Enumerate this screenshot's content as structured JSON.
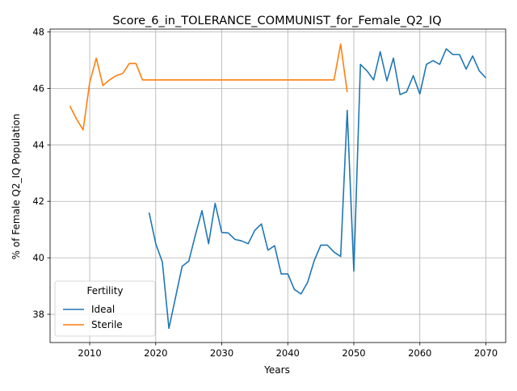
{
  "chart_data": {
    "type": "line",
    "title": "Score_6_in_TOLERANCE_COMMUNIST_for_Female_Q2_IQ",
    "xlabel": "Years",
    "ylabel": "% of Female Q2_IQ Population",
    "xlim": [
      2004,
      2073
    ],
    "ylim": [
      37,
      48.1
    ],
    "xticks": [
      2010,
      2020,
      2030,
      2040,
      2050,
      2060,
      2070
    ],
    "yticks": [
      38,
      40,
      42,
      44,
      46,
      48
    ],
    "grid": true,
    "legend": {
      "title": "Fertility",
      "placement": "lower-left"
    },
    "series": [
      {
        "name": "Ideal",
        "color": "#1f77b4",
        "x": [
          2019,
          2020,
          2021,
          2022,
          2023,
          2024,
          2025,
          2026,
          2027,
          2028,
          2029,
          2030,
          2031,
          2032,
          2033,
          2034,
          2035,
          2036,
          2037,
          2038,
          2039,
          2040,
          2041,
          2042,
          2043,
          2044,
          2045,
          2046,
          2047,
          2048,
          2049,
          2050,
          2051,
          2052,
          2053,
          2054,
          2055,
          2056,
          2057,
          2058,
          2059,
          2060,
          2061,
          2062,
          2063,
          2064,
          2065,
          2066,
          2067,
          2068,
          2069,
          2070
        ],
        "values": [
          41.6,
          40.5,
          39.85,
          37.5,
          38.6,
          39.7,
          39.88,
          40.8,
          41.67,
          40.5,
          41.93,
          40.9,
          40.88,
          40.65,
          40.6,
          40.5,
          40.97,
          41.2,
          40.27,
          40.43,
          39.43,
          39.43,
          38.88,
          38.72,
          39.13,
          39.9,
          40.45,
          40.45,
          40.2,
          40.05,
          45.22,
          39.53,
          46.85,
          46.62,
          46.3,
          47.3,
          46.27,
          47.07,
          45.78,
          45.88,
          46.45,
          45.8,
          46.85,
          46.98,
          46.85,
          47.4,
          47.2,
          47.2,
          46.68,
          47.15,
          46.62,
          46.37
        ]
      },
      {
        "name": "Sterile",
        "color": "#ff7f0e",
        "x": [
          2007,
          2008,
          2009,
          2010,
          2011,
          2012,
          2013,
          2014,
          2015,
          2016,
          2017,
          2018,
          2019,
          2020,
          2021,
          2022,
          2023,
          2024,
          2025,
          2026,
          2027,
          2028,
          2029,
          2030,
          2031,
          2032,
          2033,
          2034,
          2035,
          2036,
          2037,
          2038,
          2039,
          2040,
          2041,
          2042,
          2043,
          2044,
          2045,
          2046,
          2047,
          2048,
          2049
        ],
        "values": [
          45.38,
          44.92,
          44.53,
          46.2,
          47.07,
          46.1,
          46.3,
          46.45,
          46.53,
          46.88,
          46.88,
          46.3,
          46.3,
          46.3,
          46.3,
          46.3,
          46.3,
          46.3,
          46.3,
          46.3,
          46.3,
          46.3,
          46.3,
          46.3,
          46.3,
          46.3,
          46.3,
          46.3,
          46.3,
          46.3,
          46.3,
          46.3,
          46.3,
          46.3,
          46.3,
          46.3,
          46.3,
          46.3,
          46.3,
          46.3,
          46.3,
          47.57,
          45.87
        ]
      }
    ]
  }
}
